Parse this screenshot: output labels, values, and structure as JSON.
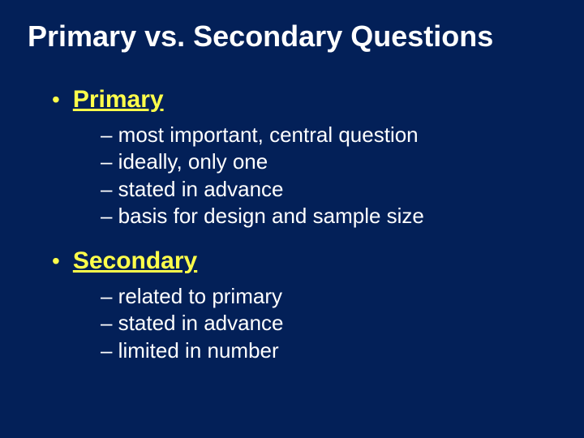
{
  "slide": {
    "title": "Primary vs. Secondary Questions",
    "background_color": "#032058",
    "title_color": "#ffffff",
    "title_fontsize": 36,
    "accent_color": "#ffff4a",
    "body_text_color": "#ffffff",
    "heading_fontsize": 30,
    "body_fontsize": 26,
    "font_family": "Arial",
    "sections": [
      {
        "heading": "Primary",
        "items": [
          "– most important, central question",
          "– ideally, only one",
          "– stated in advance",
          "– basis for design and sample size"
        ]
      },
      {
        "heading": "Secondary",
        "items": [
          "– related to primary",
          "– stated in advance",
          "– limited in number"
        ]
      }
    ]
  }
}
